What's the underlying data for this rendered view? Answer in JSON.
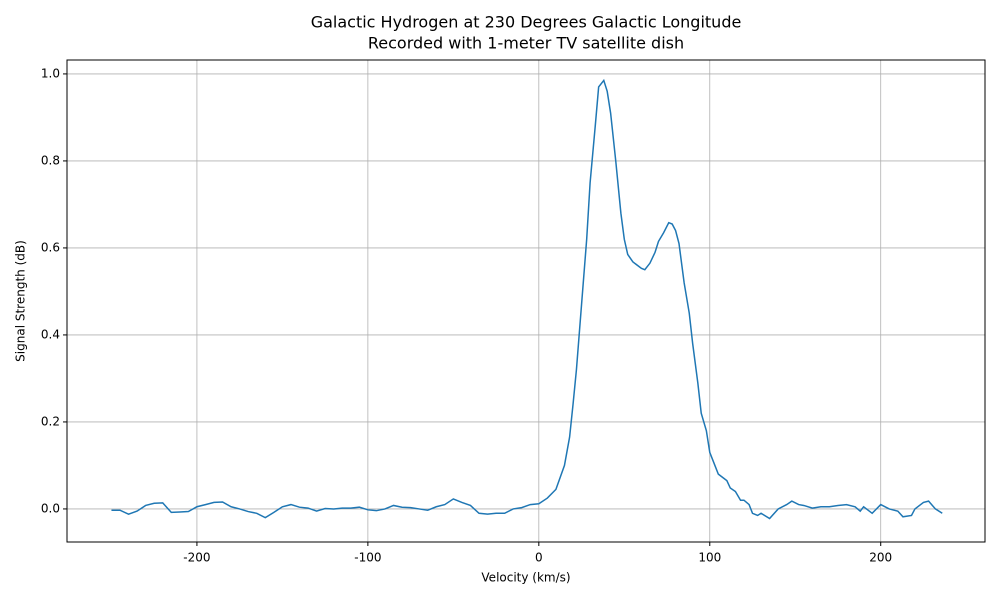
{
  "chart_data": {
    "type": "line",
    "title": [
      "Galactic Hydrogen at 230 Degrees Galactic Longitude",
      "Recorded with 1-meter TV satellite dish"
    ],
    "xlabel": "Velocity (km/s)",
    "ylabel": "Signal Strength (dB)",
    "x": [
      -250,
      -245,
      -240,
      -235,
      -230,
      -225,
      -220,
      -215,
      -210,
      -205,
      -200,
      -195,
      -190,
      -185,
      -180,
      -175,
      -170,
      -165,
      -160,
      -155,
      -150,
      -145,
      -140,
      -135,
      -130,
      -125,
      -120,
      -115,
      -110,
      -105,
      -100,
      -95,
      -90,
      -85,
      -80,
      -75,
      -70,
      -65,
      -60,
      -55,
      -50,
      -45,
      -40,
      -35,
      -30,
      -25,
      -20,
      -15,
      -10,
      -5,
      0,
      5,
      10,
      15,
      18,
      20,
      22,
      25,
      28,
      30,
      33,
      35,
      38,
      40,
      42,
      45,
      48,
      50,
      52,
      55,
      60,
      62,
      65,
      68,
      70,
      73,
      76,
      78,
      80,
      82,
      85,
      88,
      90,
      93,
      95,
      98,
      100,
      103,
      105,
      110,
      112,
      115,
      118,
      120,
      123,
      125,
      128,
      130,
      135,
      140,
      145,
      148,
      152,
      155,
      160,
      165,
      170,
      175,
      180,
      185,
      188,
      190,
      195,
      200,
      205,
      210,
      213,
      218,
      220,
      225,
      228,
      232,
      236
    ],
    "series": [
      {
        "name": "signal",
        "color": "#1f77b4",
        "values": [
          -0.003,
          -0.003,
          -0.012,
          -0.005,
          0.008,
          0.013,
          0.014,
          -0.008,
          -0.007,
          -0.006,
          0.005,
          0.01,
          0.015,
          0.016,
          0.005,
          0.0,
          -0.006,
          -0.01,
          -0.02,
          -0.008,
          0.005,
          0.01,
          0.004,
          0.002,
          -0.005,
          0.001,
          0.0,
          0.002,
          0.002,
          0.004,
          -0.002,
          -0.004,
          0.0,
          0.008,
          0.004,
          0.003,
          0.0,
          -0.003,
          0.005,
          0.01,
          0.023,
          0.015,
          0.008,
          -0.01,
          -0.012,
          -0.01,
          -0.01,
          0.0,
          0.003,
          0.01,
          0.012,
          0.025,
          0.045,
          0.1,
          0.165,
          0.24,
          0.32,
          0.47,
          0.62,
          0.75,
          0.88,
          0.97,
          0.985,
          0.96,
          0.91,
          0.8,
          0.68,
          0.62,
          0.585,
          0.568,
          0.553,
          0.55,
          0.565,
          0.59,
          0.615,
          0.635,
          0.658,
          0.655,
          0.64,
          0.61,
          0.52,
          0.45,
          0.38,
          0.29,
          0.22,
          0.18,
          0.13,
          0.1,
          0.08,
          0.065,
          0.048,
          0.04,
          0.02,
          0.02,
          0.01,
          -0.01,
          -0.015,
          -0.01,
          -0.022,
          0.0,
          0.01,
          0.018,
          0.01,
          0.008,
          0.002,
          0.005,
          0.005,
          0.008,
          0.01,
          0.005,
          -0.005,
          0.005,
          -0.01,
          0.01,
          0.0,
          -0.005,
          -0.018,
          -0.015,
          0.0,
          0.015,
          0.018,
          0.0,
          -0.01
        ]
      }
    ],
    "xlim": [
      -276,
      261
    ],
    "ylim": [
      -0.076,
      1.032
    ],
    "xticks": [
      -200,
      -100,
      0,
      100,
      200
    ],
    "yticks": [
      {
        "value": 0,
        "label": "0.0"
      },
      {
        "value": 0.2,
        "label": "0.2"
      },
      {
        "value": 0.4,
        "label": "0.4"
      },
      {
        "value": 0.6,
        "label": "0.6"
      },
      {
        "value": 0.8,
        "label": "0.8"
      },
      {
        "value": 1,
        "label": "1.0"
      }
    ],
    "grid": true
  }
}
